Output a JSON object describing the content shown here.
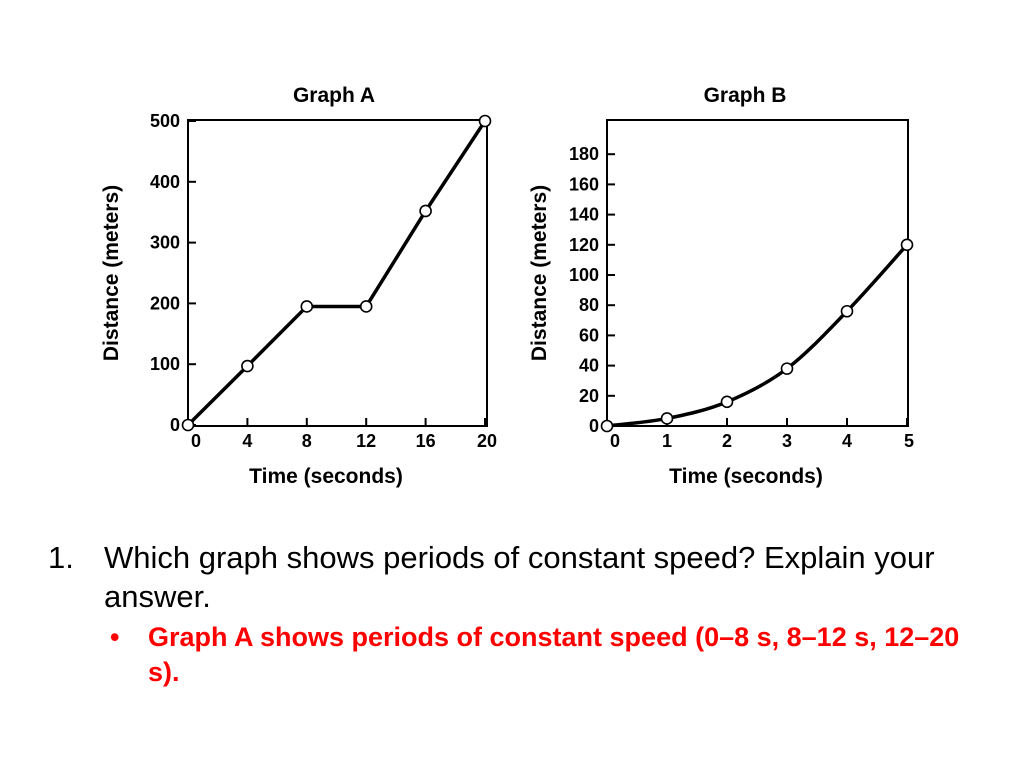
{
  "chart_data": [
    {
      "type": "line",
      "title": "Graph A",
      "xlabel": "Time (seconds)",
      "ylabel": "Distance (meters)",
      "xlim": [
        0,
        20
      ],
      "ylim": [
        0,
        500
      ],
      "xticks": [
        0,
        4,
        8,
        12,
        16,
        20
      ],
      "yticks": [
        0,
        100,
        200,
        300,
        400,
        500
      ],
      "x": [
        0,
        4,
        8,
        12,
        16,
        20
      ],
      "series": [
        {
          "values": [
            0,
            97,
            195,
            195,
            352,
            500
          ]
        }
      ],
      "markers": "open-circle",
      "grid": false
    },
    {
      "type": "line",
      "title": "Graph B",
      "xlabel": "Time (seconds)",
      "ylabel": "Distance (meters)",
      "xlim": [
        0,
        5
      ],
      "ylim": [
        0,
        200
      ],
      "xticks": [
        0,
        1,
        2,
        3,
        4,
        5
      ],
      "yticks": [
        0,
        20,
        40,
        60,
        80,
        100,
        120,
        140,
        160,
        180
      ],
      "x": [
        0,
        1,
        2,
        3,
        4,
        5
      ],
      "series": [
        {
          "values": [
            0,
            5,
            16,
            38,
            76,
            120
          ]
        }
      ],
      "markers": "open-circle",
      "grid": false
    }
  ],
  "question": {
    "number": "1.",
    "text": "Which graph shows periods of constant speed? Explain your answer.",
    "answer_bullet": "•",
    "answer": "Graph A shows periods of constant speed (0–8 s, 8–12 s, 12–20 s)."
  },
  "colors": {
    "answer": "#ff0000",
    "text": "#000000"
  }
}
